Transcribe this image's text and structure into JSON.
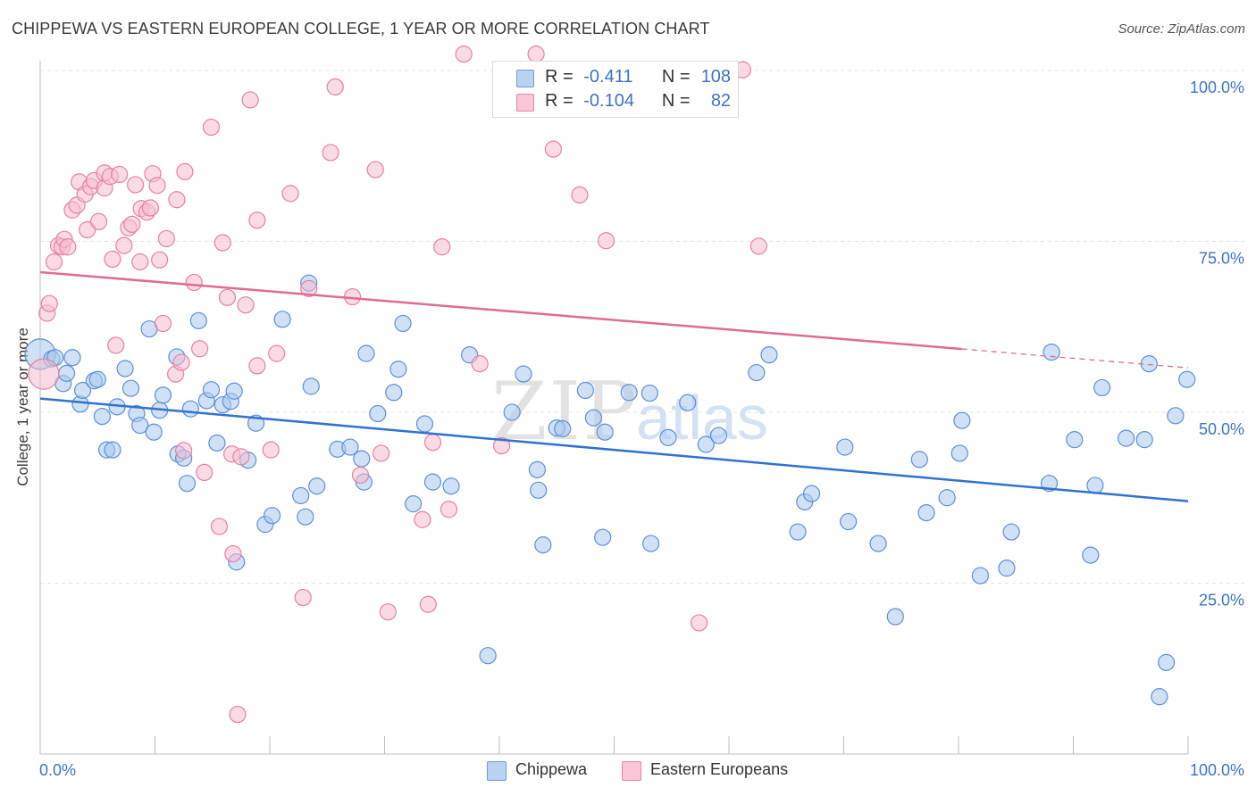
{
  "title": "CHIPPEWA VS EASTERN EUROPEAN COLLEGE, 1 YEAR OR MORE CORRELATION CHART",
  "source": "Source: ZipAtlas.com",
  "watermark": {
    "zip": "ZIP",
    "atlas": "atlas"
  },
  "colors": {
    "blue_fill": "#a9c8ef",
    "blue_stroke": "#5b8fd6",
    "blue_line": "#2f72d0",
    "pink_fill": "#f6bdd0",
    "pink_stroke": "#e87fa3",
    "pink_line": "#e06a93",
    "tick_label": "#3b74c6",
    "grid": "#e3e3e3"
  },
  "legend": {
    "rows": [
      {
        "swatch": "blue",
        "r_label": "R =",
        "r_value": "-0.411",
        "n_label": "N =",
        "n_value": "108"
      },
      {
        "swatch": "pink",
        "r_label": "R =",
        "r_value": "-0.104",
        "n_label": "N =",
        "n_value": "82"
      }
    ]
  },
  "bottom_legend": [
    {
      "swatch": "blue",
      "label": "Chippewa"
    },
    {
      "swatch": "pink",
      "label": "Eastern Europeans"
    }
  ],
  "chart_data": {
    "type": "scatter",
    "title": "CHIPPEWA VS EASTERN EUROPEAN COLLEGE, 1 YEAR OR MORE CORRELATION CHART",
    "xlabel": "",
    "ylabel": "College, 1 year or more",
    "xlim": [
      0,
      100
    ],
    "ylim": [
      0,
      100
    ],
    "x_tick_labels": [
      {
        "value": 0,
        "label": "0.0%"
      },
      {
        "value": 100,
        "label": "100.0%"
      }
    ],
    "y_tick_labels": [
      {
        "value": 100,
        "label": "100.0%"
      },
      {
        "value": 75,
        "label": "75.0%"
      },
      {
        "value": 50,
        "label": "50.0%"
      },
      {
        "value": 25,
        "label": "25.0%"
      }
    ],
    "grid": true,
    "legend_position": "top-center",
    "series": [
      {
        "name": "Chippewa",
        "color": "blue",
        "r": -0.411,
        "n": 108,
        "trend": {
          "x0": 0,
          "y0": 52,
          "x1": 100,
          "y1": 37,
          "solid_to": 100
        },
        "points": [
          [
            0,
            58.5
          ],
          [
            1,
            57.8
          ],
          [
            1.3,
            58
          ],
          [
            2,
            54.2
          ],
          [
            2.3,
            55.7
          ],
          [
            2.8,
            58
          ],
          [
            3.5,
            51.2
          ],
          [
            3.7,
            53.2
          ],
          [
            4.7,
            54.6
          ],
          [
            5,
            54.8
          ],
          [
            5.4,
            49.4
          ],
          [
            5.8,
            44.5
          ],
          [
            6.3,
            44.5
          ],
          [
            6.7,
            50.8
          ],
          [
            7.4,
            56.4
          ],
          [
            7.9,
            53.5
          ],
          [
            8.4,
            49.8
          ],
          [
            8.7,
            48.1
          ],
          [
            9.5,
            62.2
          ],
          [
            9.9,
            47.1
          ],
          [
            10.4,
            50.3
          ],
          [
            10.7,
            52.5
          ],
          [
            11.9,
            58.1
          ],
          [
            12,
            43.9
          ],
          [
            12.5,
            43.3
          ],
          [
            12.8,
            39.6
          ],
          [
            13.1,
            50.5
          ],
          [
            13.8,
            63.4
          ],
          [
            14.5,
            51.7
          ],
          [
            14.9,
            53.3
          ],
          [
            15.4,
            45.5
          ],
          [
            15.9,
            51.1
          ],
          [
            16.6,
            51.6
          ],
          [
            16.9,
            53.1
          ],
          [
            17.1,
            28.1
          ],
          [
            18.1,
            43
          ],
          [
            18.8,
            48.4
          ],
          [
            19.6,
            33.6
          ],
          [
            20.2,
            34.9
          ],
          [
            21.1,
            63.6
          ],
          [
            22.7,
            37.8
          ],
          [
            23.1,
            34.7
          ],
          [
            23.4,
            68.9
          ],
          [
            23.6,
            53.8
          ],
          [
            24.1,
            39.2
          ],
          [
            25.9,
            44.6
          ],
          [
            27,
            44.9
          ],
          [
            28,
            43.2
          ],
          [
            28.2,
            39.8
          ],
          [
            28.4,
            58.6
          ],
          [
            29.4,
            49.8
          ],
          [
            30.8,
            52.9
          ],
          [
            31.2,
            56.3
          ],
          [
            31.6,
            63
          ],
          [
            32.5,
            36.6
          ],
          [
            33.5,
            48.3
          ],
          [
            34.2,
            39.8
          ],
          [
            35.8,
            39.2
          ],
          [
            37.4,
            58.4
          ],
          [
            39,
            14.4
          ],
          [
            41.1,
            50
          ],
          [
            42.1,
            55.6
          ],
          [
            43.3,
            41.6
          ],
          [
            43.4,
            38.6
          ],
          [
            43.8,
            30.6
          ],
          [
            45,
            47.7
          ],
          [
            45.5,
            47.6
          ],
          [
            47.5,
            53.2
          ],
          [
            48.2,
            49.2
          ],
          [
            49,
            31.7
          ],
          [
            49.2,
            47.1
          ],
          [
            51.3,
            52.9
          ],
          [
            53.2,
            30.8
          ],
          [
            53.1,
            52.8
          ],
          [
            54.7,
            46.3
          ],
          [
            56.4,
            51.4
          ],
          [
            58,
            45.3
          ],
          [
            59.1,
            46.6
          ],
          [
            62.4,
            55.8
          ],
          [
            63.5,
            58.4
          ],
          [
            66,
            32.5
          ],
          [
            66.6,
            36.9
          ],
          [
            67.2,
            38.1
          ],
          [
            70.1,
            44.9
          ],
          [
            70.4,
            34
          ],
          [
            73,
            30.8
          ],
          [
            74.5,
            20.1
          ],
          [
            76.6,
            43.1
          ],
          [
            77.2,
            35.3
          ],
          [
            79,
            37.5
          ],
          [
            80.1,
            44
          ],
          [
            80.3,
            48.8
          ],
          [
            81.9,
            26.1
          ],
          [
            84.2,
            27.2
          ],
          [
            84.6,
            32.5
          ],
          [
            87.9,
            39.6
          ],
          [
            88.1,
            58.8
          ],
          [
            90.1,
            46
          ],
          [
            91.5,
            29.1
          ],
          [
            91.9,
            39.3
          ],
          [
            92.5,
            53.6
          ],
          [
            94.6,
            46.2
          ],
          [
            96.2,
            46
          ],
          [
            96.6,
            57.1
          ],
          [
            97.5,
            8.4
          ],
          [
            98.1,
            13.4
          ],
          [
            98.9,
            49.5
          ],
          [
            99.9,
            54.8
          ]
        ]
      },
      {
        "name": "Eastern Europeans",
        "color": "pink",
        "r": -0.104,
        "n": 82,
        "trend": {
          "x0": 0,
          "y0": 70.5,
          "x1": 100,
          "y1": 56.5,
          "solid_to": 80.3
        },
        "points": [
          [
            0.3,
            55.6
          ],
          [
            0.6,
            64.5
          ],
          [
            0.8,
            65.9
          ],
          [
            1.2,
            72
          ],
          [
            1.6,
            74.4
          ],
          [
            1.9,
            74.2
          ],
          [
            2.1,
            75.3
          ],
          [
            2.4,
            74.2
          ],
          [
            2.8,
            79.6
          ],
          [
            3.2,
            80.3
          ],
          [
            3.4,
            83.7
          ],
          [
            3.9,
            81.9
          ],
          [
            4.1,
            76.7
          ],
          [
            4.4,
            83
          ],
          [
            4.7,
            83.9
          ],
          [
            5.1,
            77.9
          ],
          [
            5.6,
            82.8
          ],
          [
            5.6,
            85
          ],
          [
            6.1,
            84.5
          ],
          [
            6.3,
            72.4
          ],
          [
            6.6,
            59.8
          ],
          [
            6.9,
            84.8
          ],
          [
            7.3,
            74.4
          ],
          [
            7.7,
            77
          ],
          [
            8,
            77.5
          ],
          [
            8.3,
            83.3
          ],
          [
            8.7,
            72
          ],
          [
            8.8,
            79.8
          ],
          [
            9.3,
            79.3
          ],
          [
            9.6,
            79.9
          ],
          [
            9.8,
            84.9
          ],
          [
            10.2,
            83.2
          ],
          [
            10.4,
            72.3
          ],
          [
            10.7,
            63
          ],
          [
            11,
            75.4
          ],
          [
            11.8,
            55.6
          ],
          [
            11.9,
            81.1
          ],
          [
            12.3,
            57.3
          ],
          [
            12.6,
            85.2
          ],
          [
            12.5,
            44.4
          ],
          [
            13.4,
            69
          ],
          [
            13.9,
            59.3
          ],
          [
            14.3,
            41.2
          ],
          [
            14.9,
            91.7
          ],
          [
            15.6,
            33.3
          ],
          [
            15.9,
            74.8
          ],
          [
            16.3,
            66.8
          ],
          [
            16.7,
            43.9
          ],
          [
            16.8,
            29.3
          ],
          [
            17.2,
            5.8
          ],
          [
            17.5,
            43.5
          ],
          [
            17.9,
            65.7
          ],
          [
            18.3,
            95.7
          ],
          [
            18.9,
            78.1
          ],
          [
            18.9,
            56.8
          ],
          [
            20.1,
            44.5
          ],
          [
            20.6,
            58.6
          ],
          [
            21.8,
            82
          ],
          [
            22.9,
            22.9
          ],
          [
            23.4,
            68.1
          ],
          [
            25.3,
            88
          ],
          [
            25.7,
            97.6
          ],
          [
            27.2,
            66.9
          ],
          [
            27.9,
            40.8
          ],
          [
            29.2,
            85.5
          ],
          [
            29.7,
            44
          ],
          [
            30.3,
            20.8
          ],
          [
            33.3,
            34.3
          ],
          [
            33.8,
            21.9
          ],
          [
            34.2,
            45.6
          ],
          [
            35,
            74.2
          ],
          [
            35.6,
            35.8
          ],
          [
            38.3,
            57.1
          ],
          [
            40.2,
            45.1
          ],
          [
            43.2,
            102.4
          ],
          [
            44.7,
            88.5
          ],
          [
            47,
            81.8
          ],
          [
            49.3,
            75.1
          ],
          [
            57.4,
            19.2
          ],
          [
            61.2,
            100.1
          ],
          [
            62.6,
            74.3
          ],
          [
            36.9,
            102.4
          ]
        ]
      }
    ]
  }
}
